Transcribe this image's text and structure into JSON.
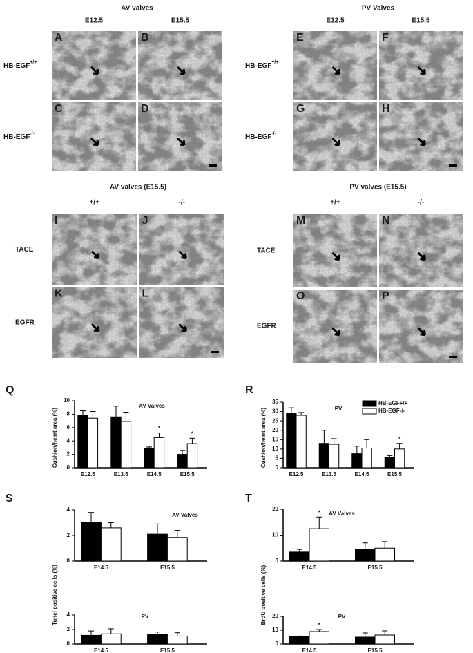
{
  "image_groups": [
    {
      "title": "AV valves",
      "columns": [
        "E12.5",
        "E15.5"
      ],
      "rows": [
        {
          "base": "HB-EGF",
          "sup": "+/+"
        },
        {
          "base": "HB-EGF",
          "sup": "-/-"
        }
      ],
      "panels": [
        "A",
        "B",
        "C",
        "D"
      ]
    },
    {
      "title": "PV Valves",
      "columns": [
        "E12.5",
        "E15.5"
      ],
      "rows": [
        {
          "base": "HB-EGF",
          "sup": "+/+"
        },
        {
          "base": "HB-EGF",
          "sup": "-/-"
        }
      ],
      "panels": [
        "E",
        "F",
        "G",
        "H"
      ]
    },
    {
      "title": "AV valves (E15.5)",
      "columns": [
        "+/+",
        "-/-"
      ],
      "rows": [
        "TACE",
        "EGFR"
      ],
      "panels": [
        "I",
        "J",
        "K",
        "L"
      ]
    },
    {
      "title": "PV valves (E15.5)",
      "columns": [
        "+/+",
        "-/-"
      ],
      "rows": [
        "TACE",
        "EGFR"
      ],
      "panels": [
        "M",
        "N",
        "O",
        "P"
      ]
    }
  ],
  "chart_data": [
    {
      "type": "bar",
      "panel": "Q",
      "title": "AV Valves",
      "ylabel": "Cushion/heart area (%)",
      "categories": [
        "E12.5",
        "E13.5",
        "E14.5",
        "E15.5"
      ],
      "ylim": [
        0,
        10
      ],
      "yticks": [
        0,
        2,
        4,
        6,
        8,
        10
      ],
      "series": [
        {
          "name": "HB-EGF+/+",
          "color": "#000000",
          "values": [
            7.8,
            7.6,
            2.9,
            2.0
          ],
          "errors": [
            0.7,
            1.6,
            0.2,
            0.6
          ],
          "significance": [
            null,
            null,
            null,
            null
          ]
        },
        {
          "name": "HB-EGF-/-",
          "color": "#ffffff",
          "values": [
            7.4,
            6.9,
            4.5,
            3.6
          ],
          "errors": [
            1.0,
            1.4,
            0.7,
            0.8
          ],
          "significance": [
            null,
            null,
            "*",
            "*"
          ]
        }
      ]
    },
    {
      "type": "bar",
      "panel": "R",
      "title": "PV",
      "ylabel": "Cushion/heart area (%)",
      "categories": [
        "E12.5",
        "E13.5",
        "E14.5",
        "E15.5"
      ],
      "ylim": [
        0,
        35
      ],
      "yticks": [
        0,
        5,
        10,
        15,
        20,
        25,
        30,
        35
      ],
      "legend": "upper right",
      "series": [
        {
          "name": "HB-EGF+/+",
          "color": "#000000",
          "values": [
            29,
            13,
            7.5,
            5.5
          ],
          "errors": [
            3,
            7,
            4,
            1
          ],
          "significance": [
            null,
            null,
            null,
            null
          ]
        },
        {
          "name": "HB-EGF-/-",
          "color": "#ffffff",
          "values": [
            28,
            12.5,
            10.5,
            10
          ],
          "errors": [
            1.5,
            3,
            4.5,
            3
          ],
          "significance": [
            null,
            null,
            null,
            "*"
          ]
        }
      ]
    },
    {
      "type": "bar",
      "panel": "S",
      "title": "AV Valves",
      "categories": [
        "E14.5",
        "E15.5"
      ],
      "ylim": [
        0,
        4
      ],
      "yticks": [
        0,
        2,
        4
      ],
      "series": [
        {
          "name": "HB-EGF+/+",
          "color": "#000000",
          "values": [
            3.0,
            2.1
          ],
          "errors": [
            0.8,
            0.8
          ],
          "significance": [
            null,
            null
          ]
        },
        {
          "name": "HB-EGF-/-",
          "color": "#ffffff",
          "values": [
            2.6,
            1.85
          ],
          "errors": [
            0.4,
            0.55
          ],
          "significance": [
            null,
            null
          ]
        }
      ]
    },
    {
      "type": "bar",
      "title": "PV",
      "ylabel": "Tunel positive cells (%)",
      "categories": [
        "E14.5",
        "E15.5"
      ],
      "ylim": [
        0,
        4
      ],
      "yticks": [
        0,
        2,
        4
      ],
      "series": [
        {
          "name": "HB-EGF+/+",
          "color": "#000000",
          "values": [
            1.2,
            1.3
          ],
          "errors": [
            0.6,
            0.35
          ],
          "significance": [
            null,
            null
          ]
        },
        {
          "name": "HB-EGF-/-",
          "color": "#ffffff",
          "values": [
            1.4,
            1.1
          ],
          "errors": [
            0.7,
            0.45
          ],
          "significance": [
            null,
            null
          ]
        }
      ]
    },
    {
      "type": "bar",
      "panel": "T",
      "title": "AV Valves",
      "categories": [
        "E14.5",
        "E15.5"
      ],
      "ylim": [
        0,
        20
      ],
      "yticks": [
        0,
        10,
        20
      ],
      "series": [
        {
          "name": "HB-EGF+/+",
          "color": "#000000",
          "values": [
            3.5,
            4.5
          ],
          "errors": [
            1,
            2.5
          ],
          "significance": [
            null,
            null
          ]
        },
        {
          "name": "HB-EGF-/-",
          "color": "#ffffff",
          "values": [
            12.5,
            5
          ],
          "errors": [
            4.5,
            2.5
          ],
          "significance": [
            "*",
            null
          ]
        }
      ]
    },
    {
      "type": "bar",
      "title": "PV",
      "ylabel": "BrdU positive cells (%)",
      "categories": [
        "E14.5",
        "E15.5"
      ],
      "ylim": [
        0,
        20
      ],
      "yticks": [
        0,
        10,
        20
      ],
      "series": [
        {
          "name": "HB-EGF+/+",
          "color": "#000000",
          "values": [
            5.5,
            5
          ],
          "errors": [
            0.3,
            3
          ],
          "significance": [
            null,
            null
          ]
        },
        {
          "name": "HB-EGF-/-",
          "color": "#ffffff",
          "values": [
            9,
            6.5
          ],
          "errors": [
            1.5,
            3
          ],
          "significance": [
            "*",
            null
          ]
        }
      ]
    }
  ]
}
